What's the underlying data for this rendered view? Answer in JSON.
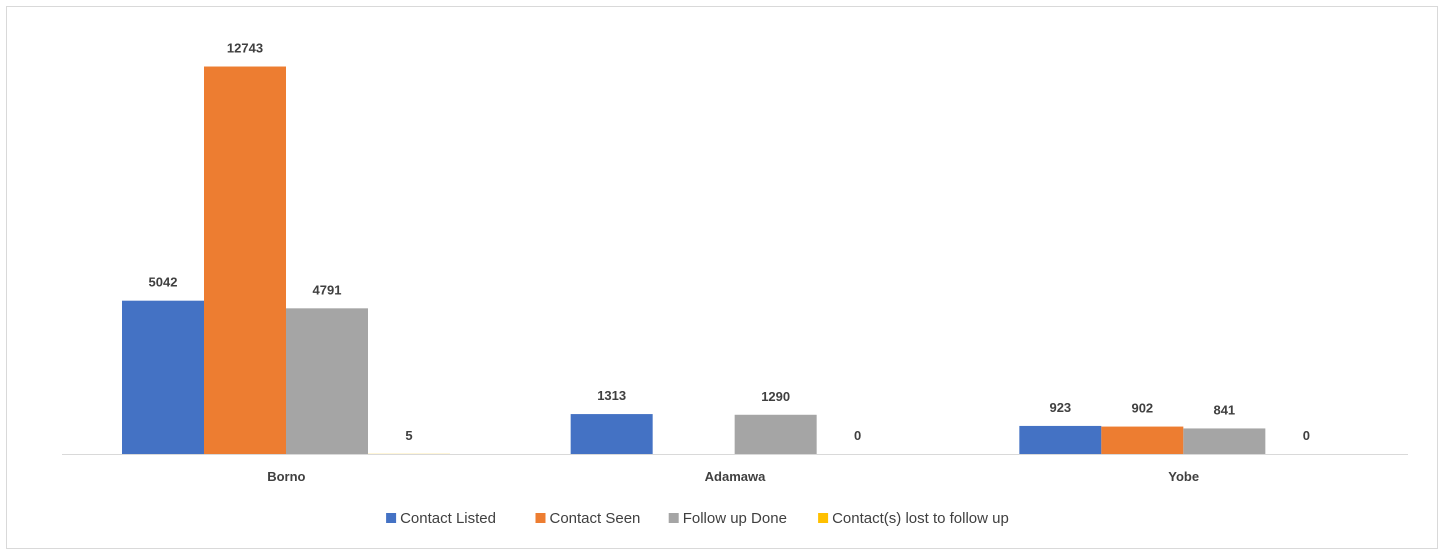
{
  "chart_data": {
    "type": "bar",
    "title": "",
    "xlabel": "",
    "ylabel": "",
    "categories": [
      "Borno",
      "Adamawa",
      "Yobe"
    ],
    "series": [
      {
        "name": "Contact Listed",
        "color": "#4472C4",
        "values": [
          5042,
          1313,
          923
        ]
      },
      {
        "name": "Contact Seen",
        "color": "#ED7D31",
        "values": [
          12743,
          null,
          902
        ]
      },
      {
        "name": "Follow up Done",
        "color": "#A5A5A5",
        "values": [
          4791,
          1290,
          841
        ]
      },
      {
        "name": "Contact(s) lost to follow up",
        "color": "#FFC000",
        "values": [
          5,
          0,
          0
        ]
      }
    ],
    "ylim": [
      0,
      13500
    ],
    "grid": false,
    "data_labels": true,
    "legend_position": "bottom"
  }
}
